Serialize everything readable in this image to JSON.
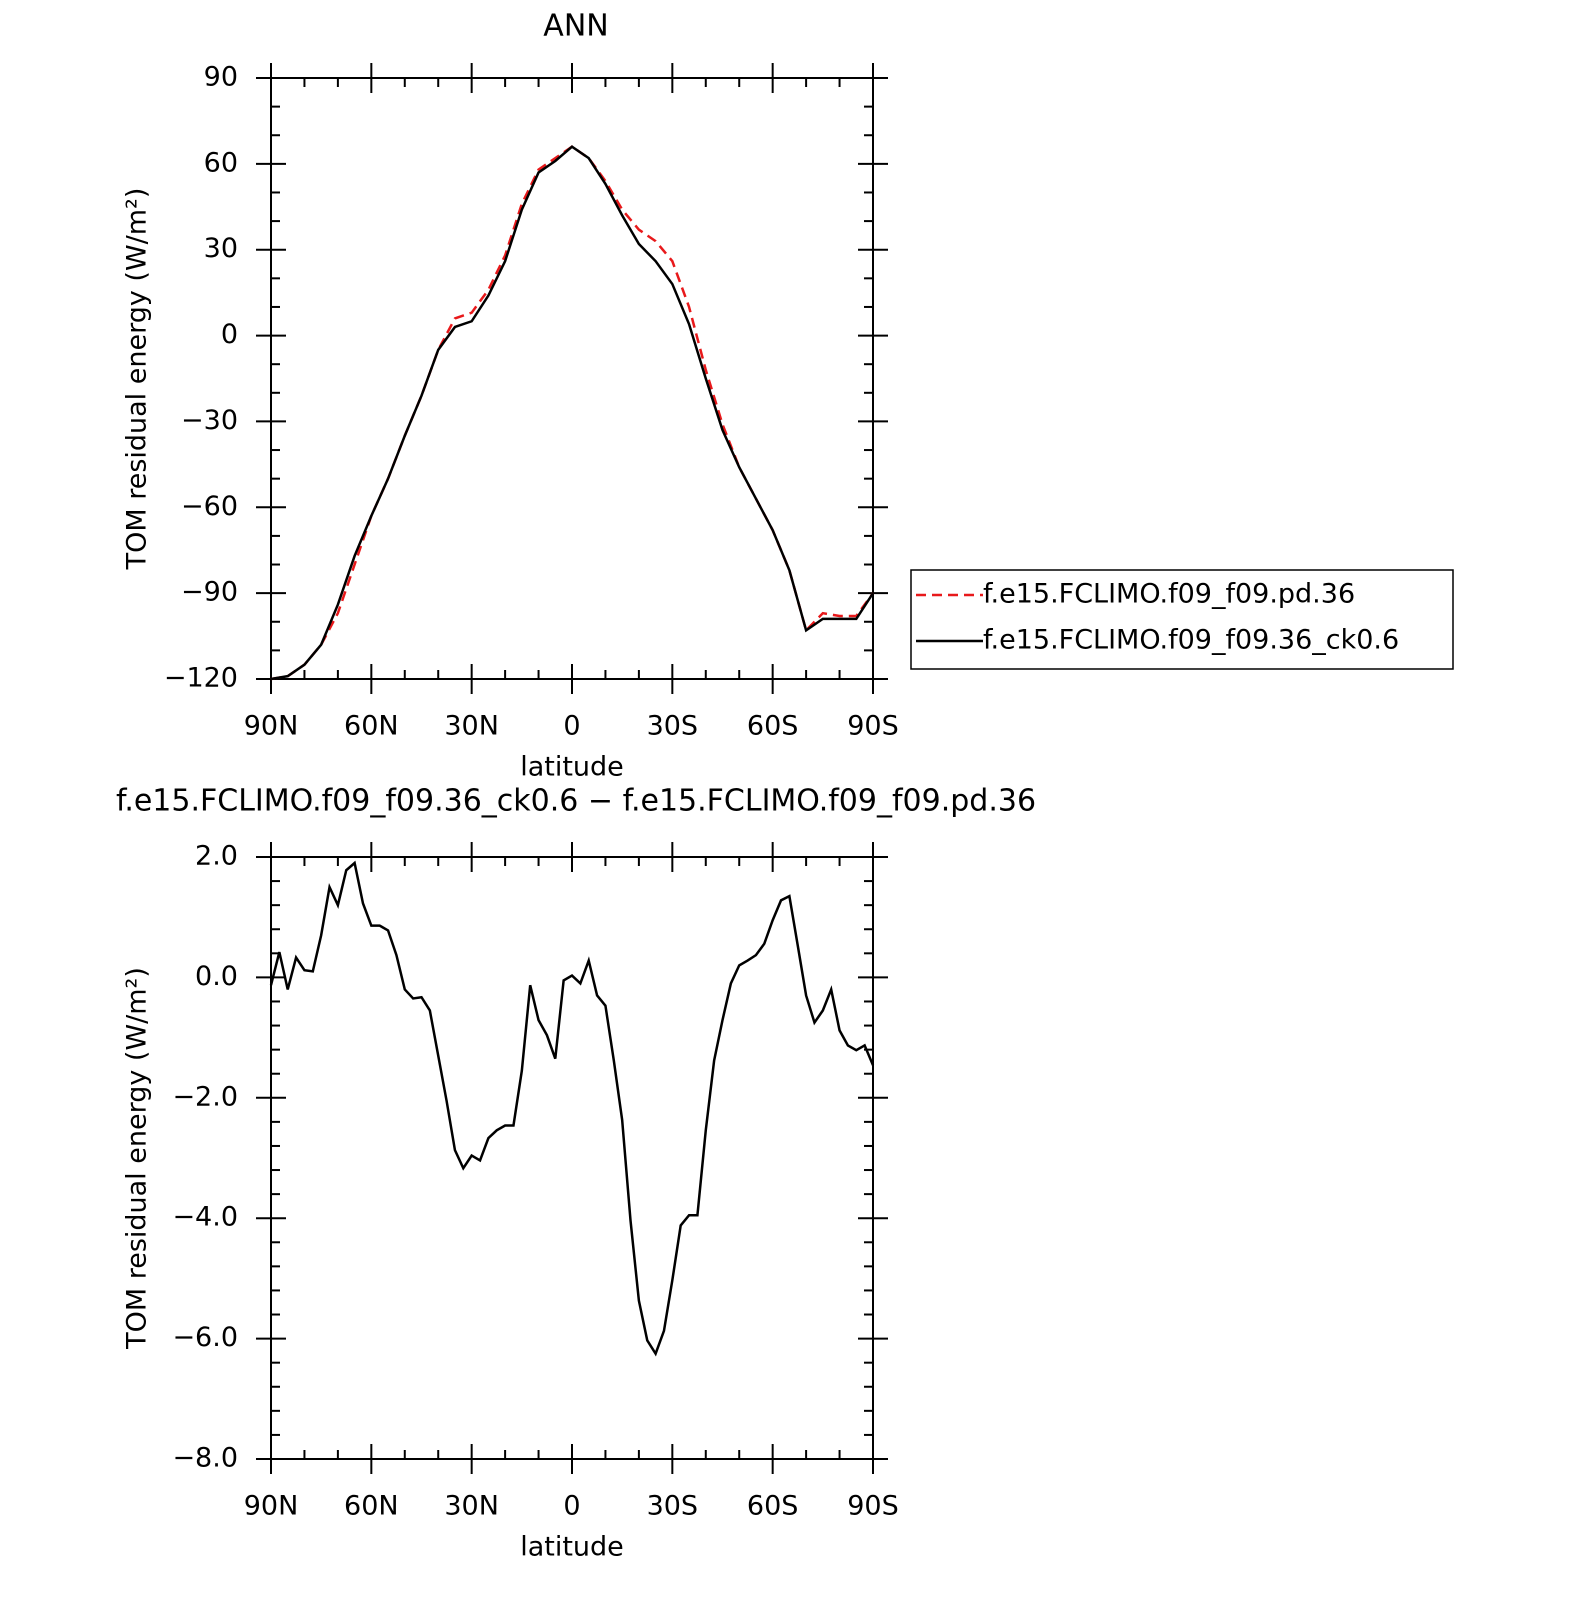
{
  "chart_data": [
    {
      "type": "line",
      "title": "ANN",
      "xlabel": "latitude",
      "ylabel": "TOM residual energy (W/m²)",
      "x": [
        90,
        85,
        80,
        75,
        70,
        65,
        60,
        55,
        50,
        45,
        40,
        35,
        30,
        25,
        20,
        15,
        10,
        5,
        0,
        -5,
        -10,
        -15,
        -20,
        -25,
        -30,
        -35,
        -40,
        -45,
        -50,
        -55,
        -60,
        -65,
        -70,
        -75,
        -80,
        -85,
        -90
      ],
      "series": [
        {
          "name": "f.e15.FCLIMO.f09_f09.pd.36",
          "color": "#e8191b",
          "style": "dashed",
          "values": [
            -120,
            -119,
            -115,
            -108,
            -97,
            -80,
            -63,
            -50,
            -35,
            -21,
            -5,
            6,
            8,
            16,
            28,
            46,
            58,
            62,
            66,
            62,
            54,
            44,
            37,
            33,
            26,
            10,
            -12,
            -31,
            -46,
            -57,
            -68,
            -82,
            -103,
            -97,
            -98,
            -98,
            -90
          ]
        },
        {
          "name": "f.e15.FCLIMO.f09_f09.36_ck0.6",
          "color": "#000000",
          "style": "solid",
          "values": [
            -120,
            -119,
            -115,
            -108,
            -94,
            -77,
            -63,
            -50,
            -35,
            -21,
            -5,
            3,
            5,
            14,
            26,
            44,
            57,
            61,
            66,
            62,
            53,
            42,
            32,
            26,
            18,
            4,
            -15,
            -33,
            -46,
            -57,
            -68,
            -82,
            -103,
            -99,
            -99,
            -99,
            -90
          ]
        }
      ],
      "xlim": [
        90,
        -90
      ],
      "xticks": [
        {
          "value": 90,
          "label": "90N"
        },
        {
          "value": 60,
          "label": "60N"
        },
        {
          "value": 30,
          "label": "30N"
        },
        0,
        {
          "value": -30,
          "label": "30S"
        },
        {
          "value": -60,
          "label": "60S"
        },
        {
          "value": -90,
          "label": "90S"
        }
      ],
      "ylim": [
        -120,
        90
      ],
      "yticks": [
        90,
        60,
        30,
        0,
        {
          "value": -30,
          "label": "−30"
        },
        {
          "value": -60,
          "label": "−60"
        },
        {
          "value": -90,
          "label": "−90"
        },
        {
          "value": -120,
          "label": "−120"
        }
      ],
      "legend": "right"
    },
    {
      "type": "line",
      "title": "f.e15.FCLIMO.f09_f09.36_ck0.6 − f.e15.FCLIMO.f09_f09.pd.36",
      "xlabel": "latitude",
      "ylabel": "TOM residual energy (W/m²)",
      "x": [
        90,
        87.5,
        85,
        82.5,
        80,
        77.5,
        75,
        72.5,
        70,
        67.5,
        65,
        62.5,
        60,
        57.5,
        55,
        52.5,
        50,
        47.5,
        45,
        42.5,
        40,
        37.5,
        35,
        32.5,
        30,
        27.5,
        25,
        22.5,
        20,
        17.5,
        15,
        12.5,
        10,
        7.5,
        5,
        2.5,
        0,
        -2.5,
        -5,
        -7.5,
        -10,
        -12.5,
        -15,
        -17.5,
        -20,
        -22.5,
        -25,
        -27.5,
        -30,
        -32.5,
        -35,
        -37.5,
        -40,
        -42.5,
        -45,
        -47.5,
        -50,
        -52.5,
        -55,
        -57.5,
        -60,
        -62.5,
        -65,
        -67.5,
        -70,
        -72.5,
        -75,
        -77.5,
        -80,
        -82.5,
        -85,
        -87.5,
        -90
      ],
      "series": [
        {
          "color": "#000000",
          "style": "solid",
          "values": [
            -0.13,
            0.42,
            -0.2,
            0.33,
            0.12,
            0.1,
            0.7,
            1.5,
            1.2,
            1.78,
            1.9,
            1.23,
            0.86,
            0.86,
            0.78,
            0.37,
            -0.2,
            -0.35,
            -0.33,
            -0.55,
            -1.3,
            -2.05,
            -2.87,
            -3.17,
            -2.96,
            -3.04,
            -2.67,
            -2.54,
            -2.46,
            -2.46,
            -1.55,
            -0.13,
            -0.71,
            -0.96,
            -1.35,
            -0.05,
            0.03,
            -0.1,
            0.28,
            -0.3,
            -0.47,
            -1.38,
            -2.37,
            -4.04,
            -5.37,
            -6.03,
            -6.25,
            -5.87,
            -5.03,
            -4.12,
            -3.95,
            -3.95,
            -2.54,
            -1.38,
            -0.71,
            -0.1,
            0.2,
            0.28,
            0.37,
            0.56,
            0.95,
            1.28,
            1.35,
            0.53,
            -0.3,
            -0.75,
            -0.55,
            -0.2,
            -0.88,
            -1.13,
            -1.21,
            -1.13,
            -1.46
          ]
        }
      ],
      "xlim": [
        90,
        -90
      ],
      "xticks": [
        {
          "value": 90,
          "label": "90N"
        },
        {
          "value": 60,
          "label": "60N"
        },
        {
          "value": 30,
          "label": "30N"
        },
        0,
        {
          "value": -30,
          "label": "30S"
        },
        {
          "value": -60,
          "label": "60S"
        },
        {
          "value": -90,
          "label": "90S"
        }
      ],
      "ylim": [
        -8,
        2
      ],
      "yticks": [
        {
          "value": 2,
          "label": "2.0"
        },
        {
          "value": 0,
          "label": "0.0"
        },
        {
          "value": -2,
          "label": "−2.0"
        },
        {
          "value": -4,
          "label": "−4.0"
        },
        {
          "value": -6,
          "label": "−6.0"
        },
        {
          "value": -8,
          "label": "−8.0"
        }
      ]
    }
  ]
}
